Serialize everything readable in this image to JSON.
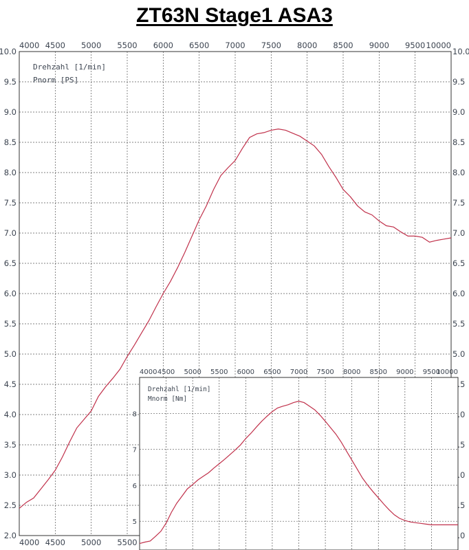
{
  "title": "ZT63N Stage1 ASA3",
  "chart_data": [
    {
      "type": "line",
      "label_x": "Drehzahl [1/min]",
      "label_y": "Pnorm [PS]",
      "xlim": [
        4000,
        10000
      ],
      "ylim": [
        2.0,
        10.0
      ],
      "x_ticks": [
        "4000",
        "4500",
        "5000",
        "5500",
        "6000",
        "6500",
        "7000",
        "7500",
        "8000",
        "8500",
        "9000",
        "9500",
        "10000"
      ],
      "y_ticks": [
        "2.0",
        "2.5",
        "3.0",
        "3.5",
        "4.0",
        "4.5",
        "5.0",
        "5.5",
        "6.0",
        "6.5",
        "7.0",
        "7.5",
        "8.0",
        "8.5",
        "9.0",
        "9.5",
        "10.0"
      ],
      "x": [
        4000,
        4100,
        4200,
        4300,
        4400,
        4500,
        4600,
        4700,
        4800,
        4900,
        5000,
        5100,
        5200,
        5300,
        5400,
        5500,
        5600,
        5700,
        5800,
        5900,
        6000,
        6100,
        6200,
        6300,
        6400,
        6500,
        6600,
        6700,
        6800,
        6900,
        7000,
        7100,
        7200,
        7300,
        7400,
        7500,
        7600,
        7700,
        7800,
        7900,
        8000,
        8100,
        8200,
        8300,
        8400,
        8500,
        8600,
        8700,
        8800,
        8900,
        9000,
        9100,
        9200,
        9300,
        9400,
        9500,
        9600,
        9700,
        9800,
        9900,
        10000
      ],
      "values": [
        2.45,
        2.55,
        2.62,
        2.77,
        2.92,
        3.08,
        3.3,
        3.55,
        3.78,
        3.92,
        4.06,
        4.3,
        4.46,
        4.6,
        4.75,
        4.96,
        5.15,
        5.35,
        5.55,
        5.78,
        6.0,
        6.2,
        6.43,
        6.68,
        6.95,
        7.22,
        7.45,
        7.72,
        7.95,
        8.08,
        8.2,
        8.4,
        8.58,
        8.64,
        8.66,
        8.7,
        8.72,
        8.7,
        8.65,
        8.6,
        8.52,
        8.44,
        8.3,
        8.1,
        7.92,
        7.72,
        7.6,
        7.45,
        7.35,
        7.3,
        7.2,
        7.12,
        7.1,
        7.02,
        6.95,
        6.95,
        6.93,
        6.85,
        6.88,
        6.9,
        6.92
      ]
    },
    {
      "type": "line",
      "label_x": "Drehzahl [1/min]",
      "label_y": "Mnorm [Nm]",
      "xlim": [
        4000,
        10000
      ],
      "ylim": [
        4.2,
        9.0
      ],
      "x_ticks": [
        "4000",
        "4500",
        "5000",
        "5500",
        "6000",
        "6500",
        "7000",
        "7500",
        "8000",
        "8500",
        "9000",
        "9500",
        "10000"
      ],
      "y_ticks": [
        "5",
        "6",
        "7",
        "8"
      ],
      "x": [
        4000,
        4100,
        4200,
        4300,
        4400,
        4500,
        4600,
        4700,
        4800,
        4900,
        5000,
        5100,
        5200,
        5300,
        5400,
        5500,
        5600,
        5700,
        5800,
        5900,
        6000,
        6100,
        6200,
        6300,
        6400,
        6500,
        6600,
        6700,
        6800,
        6900,
        7000,
        7100,
        7200,
        7300,
        7400,
        7500,
        7600,
        7700,
        7800,
        7900,
        8000,
        8100,
        8200,
        8300,
        8400,
        8500,
        8600,
        8700,
        8800,
        8900,
        9000,
        9100,
        9200,
        9300,
        9400,
        9500,
        9600,
        9700,
        9800,
        9900,
        10000
      ],
      "values": [
        4.38,
        4.42,
        4.45,
        4.58,
        4.72,
        4.95,
        5.25,
        5.5,
        5.7,
        5.9,
        6.02,
        6.15,
        6.25,
        6.35,
        6.48,
        6.6,
        6.72,
        6.85,
        6.98,
        7.12,
        7.3,
        7.45,
        7.62,
        7.78,
        7.92,
        8.05,
        8.15,
        8.2,
        8.24,
        8.3,
        8.34,
        8.3,
        8.2,
        8.1,
        7.95,
        7.78,
        7.6,
        7.42,
        7.2,
        6.95,
        6.7,
        6.45,
        6.2,
        6.0,
        5.82,
        5.65,
        5.48,
        5.32,
        5.18,
        5.08,
        5.02,
        4.98,
        4.96,
        4.94,
        4.92,
        4.9,
        4.9,
        4.9,
        4.9,
        4.9,
        4.9
      ]
    }
  ]
}
